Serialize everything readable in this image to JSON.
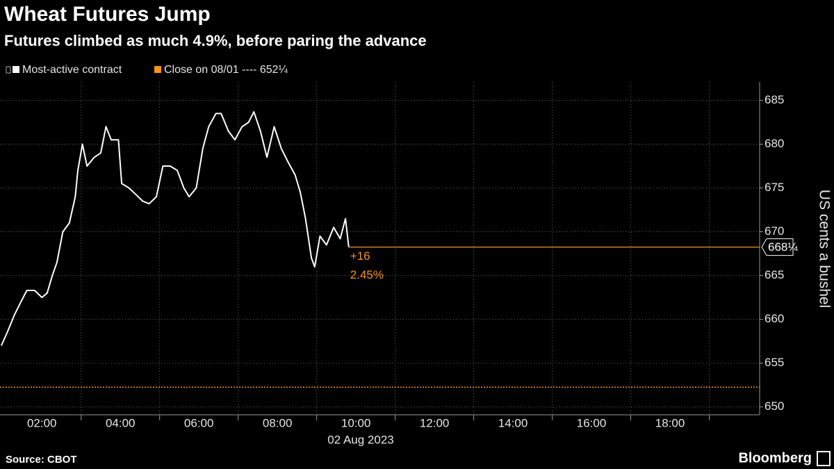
{
  "chart_data": {
    "type": "line",
    "title": "Wheat Futures Jump",
    "subtitle": "Futures climbed as much 4.9%, before paring the advance",
    "x": [
      "00:58",
      "01:07",
      "01:18",
      "01:28",
      "01:37",
      "01:49",
      "02:00",
      "02:08",
      "02:16",
      "02:23",
      "02:32",
      "02:42",
      "02:51",
      "02:55",
      "03:02",
      "03:09",
      "03:20",
      "03:30",
      "03:38",
      "03:46",
      "03:57",
      "04:02",
      "04:13",
      "04:23",
      "04:34",
      "04:44",
      "04:55",
      "05:05",
      "05:16",
      "05:27",
      "05:37",
      "05:45",
      "05:56",
      "06:06",
      "06:15",
      "06:26",
      "06:34",
      "06:45",
      "06:55",
      "07:06",
      "07:16",
      "07:24",
      "07:34",
      "07:44",
      "07:55",
      "08:06",
      "08:16",
      "08:27",
      "08:35",
      "08:43",
      "08:52",
      "08:57",
      "09:05",
      "09:15",
      "09:26",
      "09:36",
      "09:44",
      "09:49"
    ],
    "series": [
      {
        "name": "Most-active contract",
        "color": "#ffffff",
        "values": [
          657,
          658.5,
          660.5,
          662,
          663.3,
          663.3,
          662.5,
          663,
          665,
          666.5,
          670,
          671,
          674,
          677,
          680,
          677.5,
          678.5,
          679,
          682,
          680.5,
          680.5,
          675.5,
          675,
          674.3,
          673.5,
          673.2,
          674,
          677.5,
          677.5,
          677,
          675,
          674,
          675,
          679.5,
          682,
          683.5,
          683.5,
          681.5,
          680.5,
          682,
          682.5,
          683.7,
          681.5,
          678.5,
          682,
          679.5,
          678,
          676.5,
          674.5,
          671.5,
          667,
          666,
          669.5,
          668.5,
          670.5,
          669.2,
          671.5,
          668.25
        ]
      }
    ],
    "close_line": {
      "name": "Close on 08/01 ---- 652¼",
      "value": 652.25,
      "color": "#f7931e"
    },
    "last_value": {
      "value": 668.25,
      "label": "668¼",
      "color": "#f7931e"
    },
    "annotation": {
      "change": "+16",
      "percent": "2.45%"
    },
    "xlim": [
      "00:56",
      "20:17"
    ],
    "xticks": [
      "02:00",
      "04:00",
      "06:00",
      "08:00",
      "10:00",
      "12:00",
      "14:00",
      "16:00",
      "18:00"
    ],
    "xgrid": [
      "03:00",
      "05:00",
      "07:00",
      "09:00",
      "11:00",
      "13:00",
      "15:00",
      "17:00",
      "19:00"
    ],
    "x_label": "02 Aug 2023",
    "ylim": [
      649.1,
      687.1
    ],
    "yticks": [
      650,
      655,
      660,
      665,
      670,
      675,
      680,
      685
    ],
    "y_label": "US cents a bushel",
    "grid": true,
    "source": "Source: CBOT",
    "brand": "Bloomberg"
  }
}
